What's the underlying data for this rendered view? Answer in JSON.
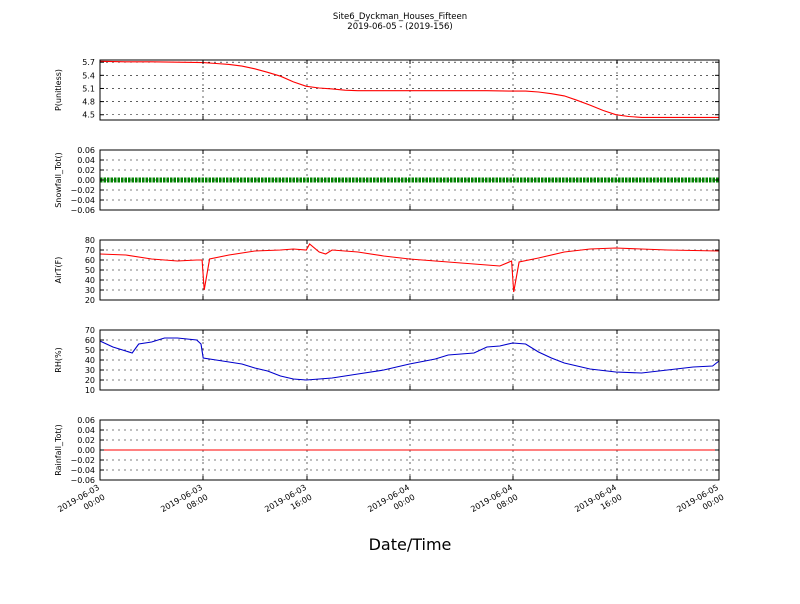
{
  "title": "Site6_Dyckman_Houses_Fifteen",
  "subtitle": "2019-06-05 - (2019-156)",
  "xlabel": "Date/Time",
  "x_ticks": [
    "2019-06-03\n00:00",
    "2019-06-03\n08:00",
    "2019-06-03\n16:00",
    "2019-06-04\n00:00",
    "2019-06-04\n08:00",
    "2019-06-04\n16:00",
    "2019-06-05\n00:00"
  ],
  "chart_data": [
    {
      "type": "line",
      "ylabel": "P(unitless)",
      "color": "#ff0000",
      "xlim": [
        "2019-06-03 00:00",
        "2019-06-05 00:00"
      ],
      "ylim": [
        4.38,
        5.75
      ],
      "y_ticks": [
        "4.5",
        "4.8",
        "5.1",
        "5.4",
        "5.7"
      ],
      "grid": true,
      "x": [
        "2019-06-03 00:00",
        "2019-06-03 02:00",
        "2019-06-03 04:00",
        "2019-06-03 06:00",
        "2019-06-03 08:00",
        "2019-06-03 09:00",
        "2019-06-03 10:00",
        "2019-06-03 11:00",
        "2019-06-03 12:00",
        "2019-06-03 13:00",
        "2019-06-03 14:00",
        "2019-06-03 15:00",
        "2019-06-03 16:00",
        "2019-06-03 17:00",
        "2019-06-03 18:00",
        "2019-06-03 19:00",
        "2019-06-03 20:00",
        "2019-06-04 00:00",
        "2019-06-04 04:00",
        "2019-06-04 06:00",
        "2019-06-04 08:00",
        "2019-06-04 09:00",
        "2019-06-04 10:00",
        "2019-06-04 11:00",
        "2019-06-04 12:00",
        "2019-06-04 13:00",
        "2019-06-04 14:00",
        "2019-06-04 15:00",
        "2019-06-04 16:00",
        "2019-06-04 17:00",
        "2019-06-04 18:00",
        "2019-06-04 20:00",
        "2019-06-05 00:00"
      ],
      "values": [
        5.72,
        5.71,
        5.71,
        5.7,
        5.69,
        5.67,
        5.65,
        5.61,
        5.55,
        5.47,
        5.38,
        5.25,
        5.15,
        5.11,
        5.09,
        5.06,
        5.05,
        5.05,
        5.05,
        5.05,
        5.04,
        5.04,
        5.02,
        4.98,
        4.93,
        4.83,
        4.72,
        4.6,
        4.5,
        4.46,
        4.44,
        4.44,
        4.44
      ]
    },
    {
      "type": "line",
      "ylabel": "Snowfall_Tot()",
      "color": "#008000",
      "xlim": [
        "2019-06-03 00:00",
        "2019-06-05 00:00"
      ],
      "ylim": [
        -0.06,
        0.06
      ],
      "y_ticks": [
        "0.06",
        "0.04",
        "0.02",
        "0.00",
        "−0.02",
        "−0.04",
        "−0.06"
      ],
      "grid": true,
      "x": [
        "2019-06-03 00:00",
        "2019-06-05 00:00"
      ],
      "values": [
        0.0,
        0.0
      ]
    },
    {
      "type": "line",
      "ylabel": "AirT(F)",
      "color": "#ff0000",
      "xlim": [
        "2019-06-03 00:00",
        "2019-06-05 00:00"
      ],
      "ylim": [
        20,
        80
      ],
      "y_ticks": [
        "80",
        "70",
        "60",
        "50",
        "40",
        "30",
        "20"
      ],
      "grid": true,
      "x": [
        "2019-06-03 00:00",
        "2019-06-03 02:00",
        "2019-06-03 04:00",
        "2019-06-03 06:00",
        "2019-06-03 07:30",
        "2019-06-03 07:55",
        "2019-06-03 08:05",
        "2019-06-03 08:30",
        "2019-06-03 10:00",
        "2019-06-03 12:00",
        "2019-06-03 14:00",
        "2019-06-03 15:00",
        "2019-06-03 16:00",
        "2019-06-03 16:15",
        "2019-06-03 17:00",
        "2019-06-03 17:30",
        "2019-06-03 18:00",
        "2019-06-03 20:00",
        "2019-06-03 22:00",
        "2019-06-04 00:00",
        "2019-06-04 02:00",
        "2019-06-04 04:00",
        "2019-06-04 06:00",
        "2019-06-04 07:00",
        "2019-06-04 07:55",
        "2019-06-04 08:05",
        "2019-06-04 08:30",
        "2019-06-04 10:00",
        "2019-06-04 12:00",
        "2019-06-04 14:00",
        "2019-06-04 16:00",
        "2019-06-04 18:00",
        "2019-06-04 20:00",
        "2019-06-05 00:00"
      ],
      "values": [
        66,
        65,
        61,
        59,
        60,
        60,
        30,
        61,
        65,
        69,
        70,
        71,
        70,
        76,
        68,
        66,
        70,
        68,
        64,
        61,
        59,
        57,
        55,
        54,
        59,
        28,
        58,
        62,
        68,
        71,
        72,
        71,
        70,
        69
      ]
    },
    {
      "type": "line",
      "ylabel": "RH(%)",
      "color": "#0000cc",
      "xlim": [
        "2019-06-03 00:00",
        "2019-06-05 00:00"
      ],
      "ylim": [
        10,
        70
      ],
      "y_ticks": [
        "70",
        "60",
        "50",
        "40",
        "30",
        "20",
        "10"
      ],
      "grid": true,
      "x": [
        "2019-06-03 00:00",
        "2019-06-03 01:00",
        "2019-06-03 02:00",
        "2019-06-03 02:30",
        "2019-06-03 03:00",
        "2019-06-03 04:00",
        "2019-06-03 05:00",
        "2019-06-03 06:00",
        "2019-06-03 07:30",
        "2019-06-03 07:50",
        "2019-06-03 08:00",
        "2019-06-03 09:00",
        "2019-06-03 10:00",
        "2019-06-03 11:00",
        "2019-06-03 12:00",
        "2019-06-03 13:00",
        "2019-06-03 14:00",
        "2019-06-03 15:00",
        "2019-06-03 16:00",
        "2019-06-03 17:00",
        "2019-06-03 18:00",
        "2019-06-03 20:00",
        "2019-06-03 22:00",
        "2019-06-04 00:00",
        "2019-06-04 02:00",
        "2019-06-04 03:00",
        "2019-06-04 04:00",
        "2019-06-04 05:00",
        "2019-06-04 06:00",
        "2019-06-04 07:00",
        "2019-06-04 08:00",
        "2019-06-04 09:00",
        "2019-06-04 10:00",
        "2019-06-04 11:00",
        "2019-06-04 12:00",
        "2019-06-04 14:00",
        "2019-06-04 16:00",
        "2019-06-04 18:00",
        "2019-06-04 20:00",
        "2019-06-04 22:00",
        "2019-06-04 23:30",
        "2019-06-05 00:00"
      ],
      "values": [
        59,
        53,
        49,
        47,
        56,
        58,
        62,
        62,
        60,
        56,
        42,
        40,
        38,
        36,
        32,
        29,
        24,
        21,
        20,
        21,
        22,
        26,
        30,
        36,
        41,
        45,
        46,
        47,
        53,
        54,
        57,
        56,
        48,
        42,
        37,
        31,
        28,
        27,
        30,
        33,
        34,
        39
      ]
    },
    {
      "type": "line",
      "ylabel": "Rainfall_Tot()",
      "color": "#ff0000",
      "xlim": [
        "2019-06-03 00:00",
        "2019-06-05 00:00"
      ],
      "ylim": [
        -0.06,
        0.06
      ],
      "y_ticks": [
        "0.06",
        "0.04",
        "0.02",
        "0.00",
        "−0.02",
        "−0.04",
        "−0.06"
      ],
      "grid": true,
      "x": [
        "2019-06-03 00:00",
        "2019-06-05 00:00"
      ],
      "values": [
        0.0,
        0.0
      ]
    }
  ]
}
